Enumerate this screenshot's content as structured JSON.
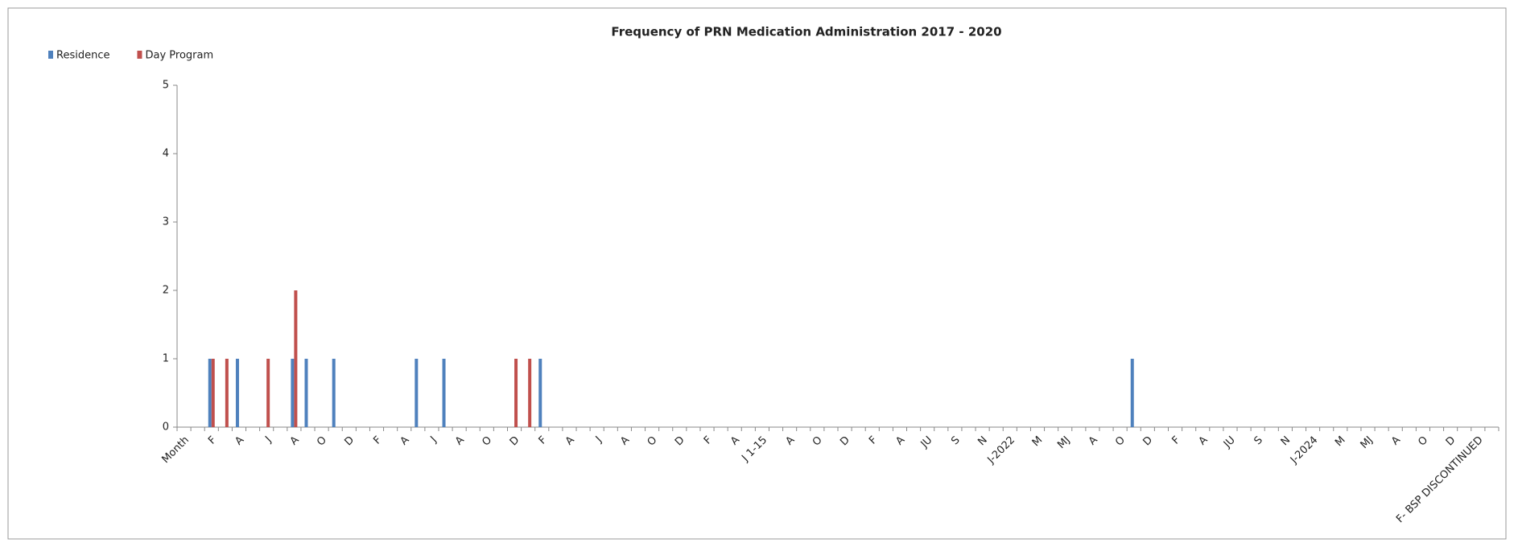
{
  "chart_data": {
    "type": "bar",
    "title": "Frequency of PRN Medication Administration 2017 - 2020",
    "categories": [
      "Month",
      null,
      "F",
      null,
      "A",
      null,
      "J",
      null,
      "A",
      null,
      "O",
      null,
      "D",
      null,
      "F",
      null,
      "A",
      null,
      "J",
      null,
      "A",
      null,
      "O",
      null,
      "D",
      null,
      "F",
      null,
      "A",
      null,
      "J",
      null,
      "A",
      null,
      "O",
      null,
      "D",
      null,
      "F",
      null,
      "A",
      null,
      "J 1-15",
      null,
      "A",
      null,
      "O",
      null,
      "D",
      null,
      "F",
      null,
      "A",
      null,
      "JU",
      null,
      "S",
      null,
      "N",
      null,
      "J-2022",
      null,
      "M",
      null,
      "MJ",
      null,
      "A",
      null,
      "O",
      null,
      "D",
      null,
      "F",
      null,
      "A",
      null,
      "JU",
      null,
      "S",
      null,
      "N",
      null,
      "J-2024",
      null,
      "M",
      null,
      "MJ",
      null,
      "A",
      null,
      "O",
      null,
      "D",
      null,
      "F- BSP DISCONTINUED",
      null
    ],
    "series": [
      {
        "name": "Residence",
        "color": "#4f81bd",
        "values": [
          0,
          0,
          1,
          0,
          1,
          0,
          0,
          0,
          1,
          1,
          0,
          1,
          0,
          0,
          0,
          0,
          0,
          1,
          0,
          1,
          0,
          0,
          0,
          0,
          0,
          0,
          1,
          0,
          0,
          0,
          0,
          0,
          0,
          0,
          0,
          0,
          0,
          0,
          0,
          0,
          0,
          0,
          0,
          0,
          0,
          0,
          0,
          0,
          0,
          0,
          0,
          0,
          0,
          0,
          0,
          0,
          0,
          0,
          0,
          0,
          0,
          0,
          0,
          0,
          0,
          0,
          0,
          0,
          0,
          1,
          0,
          0,
          0,
          0,
          0,
          0,
          0,
          0,
          0,
          0,
          0,
          0,
          0,
          0,
          0,
          0,
          0,
          0,
          0,
          0,
          0,
          0,
          0,
          0,
          0,
          0
        ]
      },
      {
        "name": "Day Program",
        "color": "#c0504d",
        "values": [
          0,
          0,
          1,
          1,
          0,
          0,
          1,
          0,
          2,
          0,
          0,
          0,
          0,
          0,
          0,
          0,
          0,
          0,
          0,
          0,
          0,
          0,
          0,
          0,
          1,
          1,
          0,
          0,
          0,
          0,
          0,
          0,
          0,
          0,
          0,
          0,
          0,
          0,
          0,
          0,
          0,
          0,
          0,
          0,
          0,
          0,
          0,
          0,
          0,
          0,
          0,
          0,
          0,
          0,
          0,
          0,
          0,
          0,
          0,
          0,
          0,
          0,
          0,
          0,
          0,
          0,
          0,
          0,
          0,
          0,
          0,
          0,
          0,
          0,
          0,
          0,
          0,
          0,
          0,
          0,
          0,
          0,
          0,
          0,
          0,
          0,
          0,
          0,
          0,
          0,
          0,
          0,
          0,
          0,
          0,
          0
        ]
      }
    ],
    "ylim": [
      0,
      5
    ],
    "yticks": [
      0,
      1,
      2,
      3,
      4,
      5
    ],
    "grid": false,
    "legend": "top-left"
  }
}
